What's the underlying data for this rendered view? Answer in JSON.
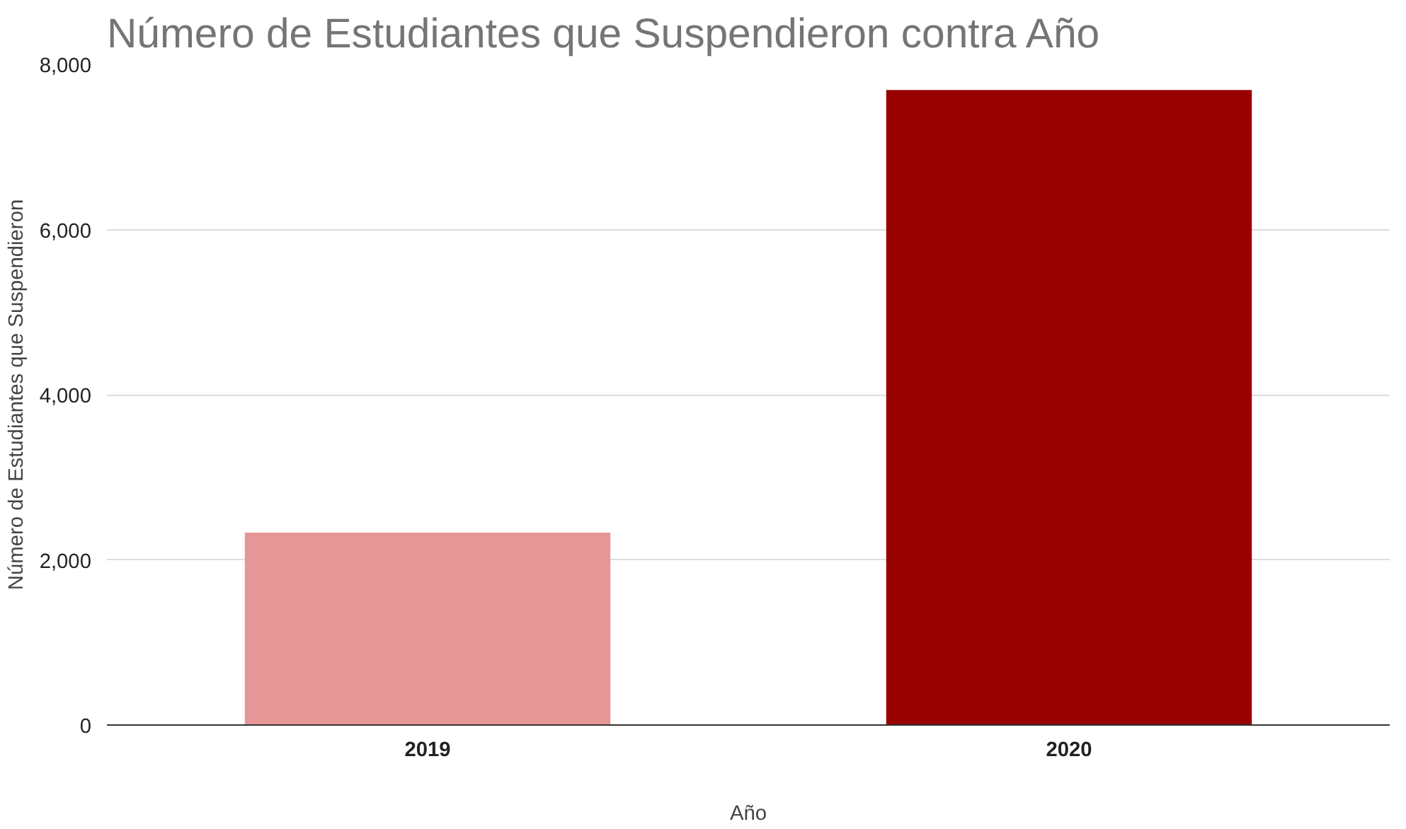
{
  "chart_data": {
    "type": "bar",
    "title": "Número de Estudiantes que Suspendieron contra Año",
    "xlabel": "Año",
    "ylabel": "Número de Estudiantes que Suspendieron",
    "categories": [
      "2019",
      "2020"
    ],
    "values": [
      2330,
      7690
    ],
    "colors": [
      "#e69696",
      "#990000"
    ],
    "ylim": [
      0,
      8000
    ],
    "yticks": [
      {
        "value": 0,
        "label": "0"
      },
      {
        "value": 2000,
        "label": "2,000"
      },
      {
        "value": 4000,
        "label": "4,000"
      },
      {
        "value": 6000,
        "label": "6,000"
      },
      {
        "value": 8000,
        "label": "8,000"
      }
    ],
    "grid": "y"
  }
}
